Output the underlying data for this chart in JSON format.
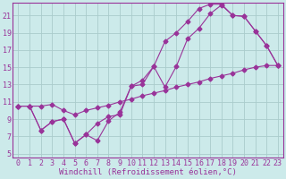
{
  "bg_color": "#cceaea",
  "line_color": "#993399",
  "grid_color": "#aacccc",
  "xlabel": "Windchill (Refroidissement éolien,°C)",
  "xlabel_fontsize": 6.5,
  "tick_fontsize": 6.0,
  "xlim": [
    -0.5,
    23.5
  ],
  "ylim": [
    4.5,
    22.5
  ],
  "yticks": [
    5,
    7,
    9,
    11,
    13,
    15,
    17,
    19,
    21
  ],
  "xticks": [
    0,
    1,
    2,
    3,
    4,
    5,
    6,
    7,
    8,
    9,
    10,
    11,
    12,
    13,
    14,
    15,
    16,
    17,
    18,
    19,
    20,
    21,
    22,
    23
  ],
  "line1_x": [
    0,
    1,
    2,
    3,
    4,
    5,
    6,
    7,
    8,
    9,
    10,
    11,
    12,
    13,
    14,
    15,
    16,
    17,
    18,
    19,
    20,
    21,
    22,
    23
  ],
  "line1_y": [
    10.5,
    10.5,
    7.7,
    8.7,
    9.0,
    6.2,
    7.2,
    8.5,
    9.3,
    9.5,
    12.8,
    13.0,
    15.1,
    12.7,
    15.1,
    18.3,
    19.5,
    21.2,
    22.2,
    21.0,
    20.9,
    19.2,
    17.5,
    15.2
  ],
  "line2_x": [
    0,
    1,
    2,
    3,
    4,
    5,
    6,
    7,
    8,
    9,
    10,
    11,
    12,
    13,
    14,
    15,
    16,
    17,
    18,
    19,
    20,
    21,
    22,
    23
  ],
  "line2_y": [
    10.5,
    10.5,
    7.7,
    8.7,
    9.0,
    6.2,
    7.2,
    6.5,
    8.8,
    9.8,
    12.8,
    13.5,
    15.1,
    18.0,
    19.0,
    20.3,
    21.8,
    22.3,
    22.3,
    21.0,
    20.9,
    19.2,
    17.5,
    15.2
  ],
  "line3_x": [
    0,
    1,
    2,
    3,
    4,
    5,
    6,
    7,
    8,
    9,
    10,
    11,
    12,
    13,
    14,
    15,
    16,
    17,
    18,
    19,
    20,
    21,
    22,
    23
  ],
  "line3_y": [
    10.5,
    10.5,
    10.5,
    10.7,
    10.0,
    9.5,
    10.0,
    10.3,
    10.6,
    11.0,
    11.3,
    11.7,
    12.0,
    12.3,
    12.7,
    13.0,
    13.3,
    13.7,
    14.0,
    14.3,
    14.7,
    15.0,
    15.2,
    15.2
  ]
}
